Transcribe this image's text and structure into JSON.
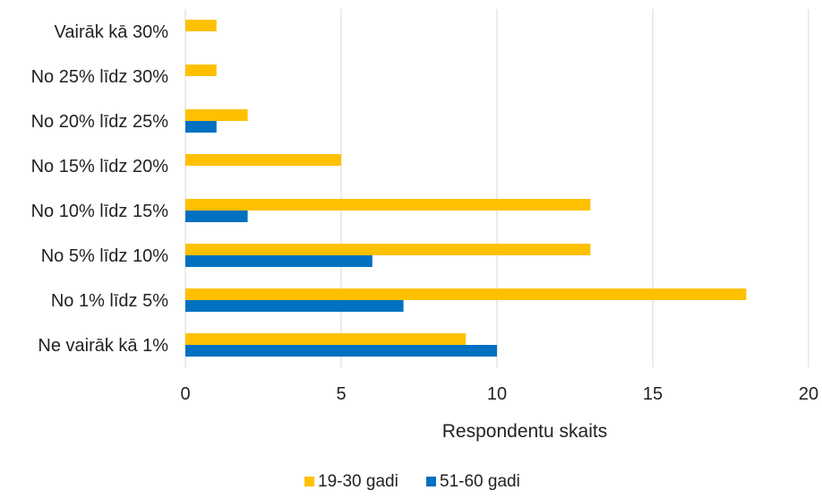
{
  "chart_data": {
    "type": "bar",
    "orientation": "horizontal",
    "categories": [
      "Vairāk kā 30%",
      "No 25% līdz 30%",
      "No 20% līdz 25%",
      "No 15% līdz 20%",
      "No 10% līdz 15%",
      "No 5% līdz 10%",
      "No 1% līdz 5%",
      "Ne vairāk kā 1%"
    ],
    "series": [
      {
        "name": "19-30 gadi",
        "color": "#FFC000",
        "values": [
          1,
          1,
          2,
          5,
          13,
          13,
          18,
          9
        ]
      },
      {
        "name": "51-60 gadi",
        "color": "#0070C0",
        "values": [
          0,
          0,
          1,
          0,
          2,
          6,
          7,
          10
        ]
      }
    ],
    "xlim": [
      0,
      20
    ],
    "xticks": [
      0,
      5,
      10,
      15,
      20
    ],
    "xlabel": "Respondentu skaits",
    "ylabel": "",
    "title": "",
    "grid": "vertical",
    "grid_color": "#D9D9D9",
    "legend_position": "bottom"
  }
}
